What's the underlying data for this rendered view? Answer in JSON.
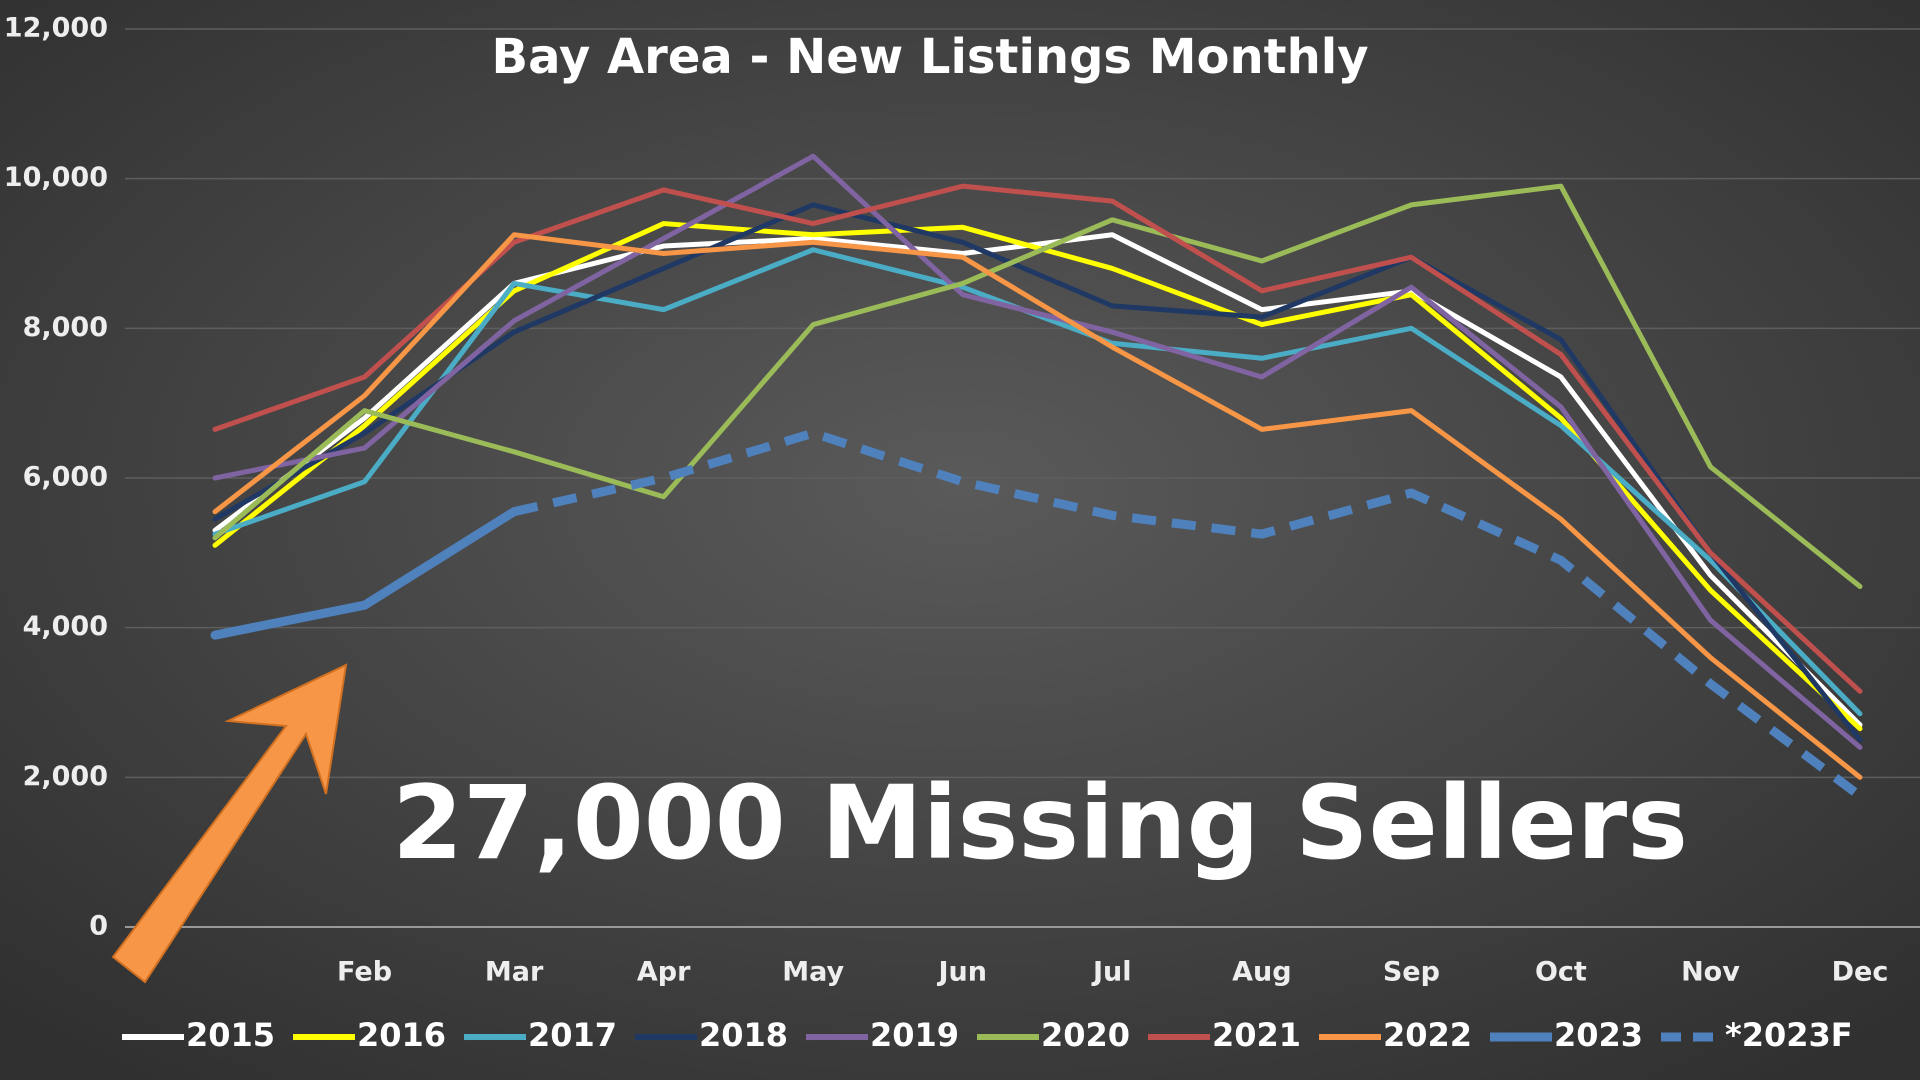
{
  "chart_data": {
    "type": "line",
    "title": "Bay Area - New Listings Monthly",
    "annotation": "27,000 Missing Sellers",
    "categories": [
      null,
      "Feb",
      "Mar",
      "Apr",
      "May",
      "Jun",
      "Jul",
      "Aug",
      "Sep",
      "Oct",
      "Nov",
      "Dec"
    ],
    "ylim": [
      0,
      12000
    ],
    "yticks": [
      0,
      {
        "value": 2000,
        "label": "2,000"
      },
      {
        "value": 4000,
        "label": "4,000"
      },
      {
        "value": 6000,
        "label": "6,000"
      },
      {
        "value": 8000,
        "label": "8,000"
      },
      {
        "value": 10000,
        "label": "10,000"
      },
      {
        "value": 12000,
        "label": "12,000"
      }
    ],
    "grid": true,
    "legend": "bottom",
    "series": [
      {
        "name": "2015",
        "color": "#ffffff",
        "values": [
          5300,
          6800,
          8600,
          9100,
          9200,
          9000,
          9250,
          8250,
          8500,
          7350,
          4700,
          2700
        ]
      },
      {
        "name": "2016",
        "color": "#ffff00",
        "values": [
          5100,
          6700,
          8500,
          9400,
          9250,
          9350,
          8800,
          8050,
          8450,
          6800,
          4500,
          2650
        ]
      },
      {
        "name": "2017",
        "color": "#4bacc6",
        "values": [
          5250,
          5950,
          8600,
          8250,
          9050,
          8550,
          7800,
          7600,
          8000,
          6700,
          4900,
          2850
        ]
      },
      {
        "name": "2018",
        "color": "#1f3864",
        "values": [
          5450,
          6600,
          7950,
          8800,
          9650,
          9150,
          8300,
          8150,
          8950,
          7850,
          5000,
          2500
        ]
      },
      {
        "name": "2019",
        "color": "#8064a2",
        "values": [
          6000,
          6400,
          8100,
          9200,
          10300,
          8450,
          7950,
          7350,
          8550,
          6950,
          4100,
          2400
        ]
      },
      {
        "name": "2020",
        "color": "#9bbb59",
        "values": [
          5200,
          6900,
          6350,
          5750,
          8050,
          8600,
          9450,
          8900,
          9650,
          9900,
          6150,
          4550
        ]
      },
      {
        "name": "2021",
        "color": "#c0504d",
        "values": [
          6650,
          7350,
          9150,
          9850,
          9400,
          9900,
          9700,
          8500,
          8950,
          7650,
          5000,
          3150
        ]
      },
      {
        "name": "2022",
        "color": "#f79646",
        "values": [
          5550,
          7100,
          9250,
          9000,
          9150,
          8950,
          7750,
          6650,
          6900,
          5450,
          3600,
          2000
        ]
      },
      {
        "name": "2023",
        "color": "#4f81bd",
        "values": [
          3900,
          4300,
          5550,
          null,
          null,
          null,
          null,
          null,
          null,
          null,
          null,
          null
        ]
      },
      {
        "name": "*2023F",
        "color": "#4f81bd",
        "dashed": true,
        "values": [
          null,
          null,
          5550,
          6000,
          6600,
          5950,
          5500,
          5250,
          5800,
          4900,
          3250,
          1750
        ]
      }
    ]
  }
}
